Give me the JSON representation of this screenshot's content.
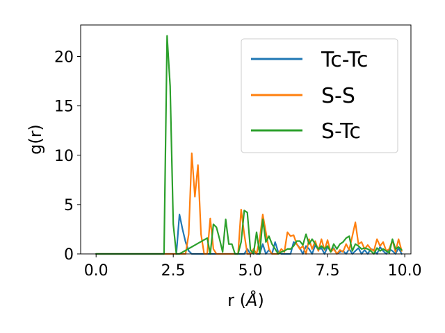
{
  "chart_data": {
    "type": "line",
    "title": "",
    "xlabel": "r (Å)",
    "ylabel": "g(r)",
    "xlim": [
      -0.5,
      10.2
    ],
    "ylim": [
      0,
      23.2
    ],
    "xticks": [
      0.0,
      2.5,
      5.0,
      7.5,
      10.0
    ],
    "xtick_labels": [
      "0.0",
      "2.5",
      "5.0",
      "7.5",
      "10.0"
    ],
    "yticks": [
      0,
      5,
      10,
      15,
      20
    ],
    "ytick_labels": [
      "0",
      "5",
      "10",
      "15",
      "20"
    ],
    "grid": false,
    "legend_position": "top-right",
    "series": [
      {
        "name": "Tc-Tc",
        "color": "#1f77b4",
        "x": [
          0.0,
          2.6,
          2.7,
          2.8,
          2.9,
          3.0,
          3.1,
          3.2,
          4.8,
          4.9,
          5.0,
          5.1,
          5.2,
          5.3,
          5.4,
          5.5,
          5.6,
          5.7,
          5.8,
          5.9,
          6.0,
          6.3,
          6.4,
          6.5,
          6.6,
          6.7,
          6.8,
          6.9,
          7.0,
          7.1,
          7.2,
          7.3,
          7.4,
          7.5,
          7.6,
          7.7,
          7.8,
          7.9,
          8.0,
          8.1,
          8.2,
          8.3,
          8.4,
          8.5,
          8.6,
          8.7,
          8.8,
          8.9,
          9.0,
          9.1,
          9.2,
          9.3,
          9.4,
          9.5,
          9.6,
          9.7,
          9.8,
          9.9
        ],
        "y": [
          0.0,
          0.0,
          4.0,
          2.5,
          1.2,
          0.3,
          0.0,
          0.0,
          0.0,
          0.5,
          0.0,
          0.3,
          0.0,
          0.0,
          1.0,
          0.0,
          0.4,
          0.0,
          1.2,
          0.2,
          0.0,
          0.0,
          1.2,
          1.0,
          0.6,
          0.0,
          0.8,
          0.5,
          0.0,
          0.9,
          0.4,
          0.6,
          0.0,
          0.7,
          0.3,
          0.6,
          0.0,
          0.2,
          0.3,
          0.0,
          0.5,
          0.0,
          0.3,
          0.6,
          0.0,
          0.4,
          0.0,
          0.5,
          0.4,
          0.0,
          0.7,
          0.3,
          0.0,
          0.5,
          0.3,
          0.0,
          0.6,
          0.0
        ]
      },
      {
        "name": "S-S",
        "color": "#ff7f0e",
        "x": [
          0.0,
          2.9,
          3.0,
          3.1,
          3.2,
          3.3,
          3.4,
          3.5,
          3.6,
          3.7,
          3.8,
          3.9,
          4.0,
          4.1,
          4.2,
          4.3,
          4.4,
          4.5,
          4.6,
          4.7,
          4.8,
          4.9,
          5.0,
          5.1,
          5.2,
          5.3,
          5.4,
          5.5,
          5.6,
          5.7,
          5.8,
          5.9,
          6.0,
          6.1,
          6.2,
          6.3,
          6.4,
          6.5,
          6.6,
          6.7,
          6.8,
          6.9,
          7.0,
          7.1,
          7.2,
          7.3,
          7.4,
          7.5,
          7.6,
          7.7,
          7.8,
          7.9,
          8.0,
          8.1,
          8.2,
          8.3,
          8.4,
          8.5,
          8.6,
          8.7,
          8.8,
          8.9,
          9.0,
          9.1,
          9.2,
          9.3,
          9.4,
          9.5,
          9.6,
          9.7,
          9.8,
          9.9
        ],
        "y": [
          0.0,
          0.0,
          2.0,
          10.2,
          5.8,
          9.0,
          2.0,
          0.0,
          0.0,
          3.6,
          0.5,
          0.0,
          0.0,
          0.0,
          0.0,
          0.0,
          0.0,
          0.0,
          0.0,
          4.5,
          2.0,
          0.0,
          0.0,
          0.5,
          0.0,
          1.5,
          4.0,
          2.2,
          0.5,
          0.0,
          0.0,
          0.0,
          0.5,
          0.2,
          2.2,
          1.8,
          1.9,
          1.0,
          0.5,
          0.8,
          0.0,
          1.5,
          0.5,
          1.3,
          0.3,
          1.5,
          0.4,
          1.4,
          0.2,
          0.5,
          0.0,
          0.4,
          0.2,
          1.0,
          0.4,
          1.8,
          3.2,
          1.0,
          1.2,
          0.5,
          0.9,
          0.5,
          0.3,
          1.5,
          0.8,
          1.2,
          0.3,
          0.5,
          1.4,
          0.2,
          1.5,
          0.3
        ]
      },
      {
        "name": "S-Tc",
        "color": "#2ca02c",
        "x": [
          0.0,
          2.2,
          2.3,
          2.4,
          2.5,
          2.6,
          2.7,
          3.6,
          3.7,
          3.8,
          3.9,
          4.0,
          4.1,
          4.2,
          4.3,
          4.4,
          4.5,
          4.6,
          4.7,
          4.8,
          4.9,
          5.0,
          5.1,
          5.2,
          5.3,
          5.4,
          5.5,
          5.6,
          5.7,
          5.8,
          5.9,
          6.0,
          6.1,
          6.2,
          6.3,
          6.4,
          6.5,
          6.6,
          6.7,
          6.8,
          6.9,
          7.0,
          7.1,
          7.2,
          7.3,
          7.4,
          7.5,
          7.6,
          7.7,
          7.8,
          7.9,
          8.0,
          8.1,
          8.2,
          8.3,
          8.4,
          8.5,
          8.6,
          8.7,
          8.8,
          8.9,
          9.0,
          9.1,
          9.2,
          9.3,
          9.4,
          9.5,
          9.6,
          9.7,
          9.8,
          9.9
        ],
        "y": [
          0.0,
          0.0,
          22.1,
          17.0,
          3.0,
          0.0,
          0.0,
          1.6,
          0.0,
          3.0,
          2.7,
          1.5,
          0.2,
          3.5,
          1.0,
          1.0,
          0.0,
          0.0,
          1.2,
          4.4,
          4.2,
          0.4,
          0.0,
          2.2,
          0.0,
          3.5,
          1.2,
          1.8,
          1.0,
          0.5,
          0.0,
          0.2,
          0.3,
          0.5,
          0.5,
          0.8,
          1.3,
          1.3,
          0.9,
          2.0,
          1.0,
          1.5,
          1.0,
          0.5,
          0.8,
          0.5,
          0.8,
          0.2,
          1.0,
          0.5,
          1.0,
          1.2,
          1.6,
          1.8,
          0.3,
          1.0,
          0.8,
          0.5,
          0.6,
          0.5,
          0.3,
          0.0,
          0.6,
          0.3,
          0.5,
          0.3,
          0.1,
          1.5,
          0.5,
          0.7,
          0.4
        ]
      }
    ]
  }
}
